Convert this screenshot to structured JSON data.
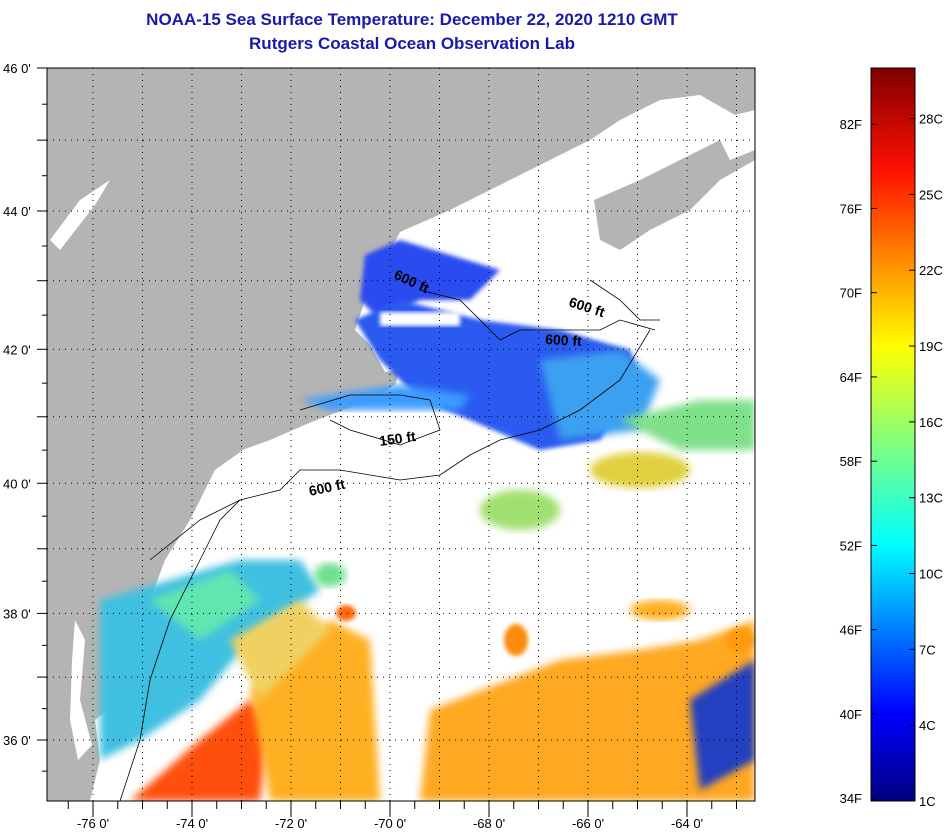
{
  "title": {
    "line1": "NOAA-15 Sea Surface Temperature:  December 22, 2020 1210 GMT",
    "line2": "Rutgers Coastal Ocean Observation Lab"
  },
  "map": {
    "lon_ticks": [
      -76,
      -74,
      -72,
      -70,
      -68,
      -66,
      -64
    ],
    "lon_labels": [
      "-76 0'",
      "-74 0'",
      "-72 0'",
      "-70 0'",
      "-68 0'",
      "-66 0'",
      "-64 0'"
    ],
    "lat_ticks": [
      46,
      44,
      42,
      40,
      38,
      36
    ],
    "lat_labels": [
      "46 0'",
      "44 0'",
      "42 0'",
      "40 0'",
      "38 0'",
      "36 0'"
    ],
    "contour_labels": [
      "600 ft",
      "600 ft",
      "600 ft",
      "150 ft",
      "600 ft"
    ],
    "colors": {
      "land": "#b4b4b4",
      "no_data": "#ffffff",
      "grid": "#000000"
    }
  },
  "colorbar": {
    "range_c": [
      1,
      30
    ],
    "fahrenheit_labels": [
      "82F",
      "76F",
      "70F",
      "64F",
      "58F",
      "52F",
      "46F",
      "40F",
      "34F"
    ],
    "fahrenheit_values": [
      82,
      76,
      70,
      64,
      58,
      52,
      46,
      40,
      34
    ],
    "celsius_labels": [
      "28C",
      "25C",
      "22C",
      "19C",
      "16C",
      "13C",
      "10C",
      "7C",
      "4C",
      "1C"
    ],
    "celsius_values": [
      28,
      25,
      22,
      19,
      16,
      13,
      10,
      7,
      4,
      1
    ]
  }
}
